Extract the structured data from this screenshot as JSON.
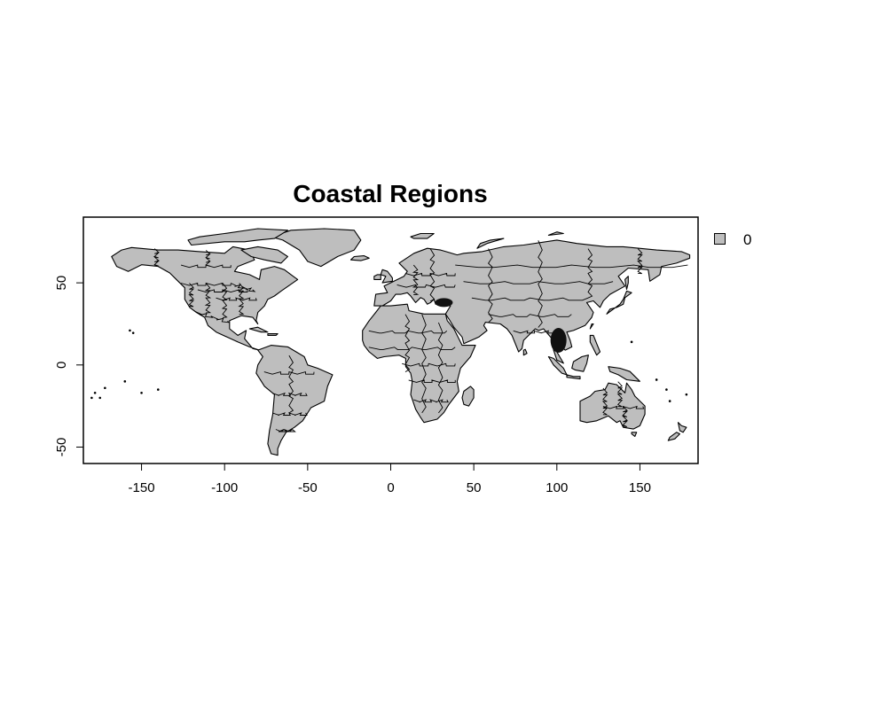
{
  "title": "Coastal Regions",
  "map": {
    "projection": "longitude-latitude",
    "xlim": [
      -185,
      185
    ],
    "ylim": [
      -60,
      90
    ],
    "x_ticks": [
      -150,
      -100,
      -50,
      0,
      50,
      100,
      150
    ],
    "x_tick_labels": [
      "-150",
      "-100",
      "-50",
      "0",
      "50",
      "100",
      "150"
    ],
    "y_ticks": [
      -50,
      0,
      50
    ],
    "y_tick_labels": [
      "-50",
      "0",
      "50"
    ],
    "land_color": "#bebebe",
    "border_color": "#000000"
  },
  "legend": {
    "position": "right",
    "items": [
      {
        "label": "0",
        "color": "#bebebe"
      }
    ]
  }
}
